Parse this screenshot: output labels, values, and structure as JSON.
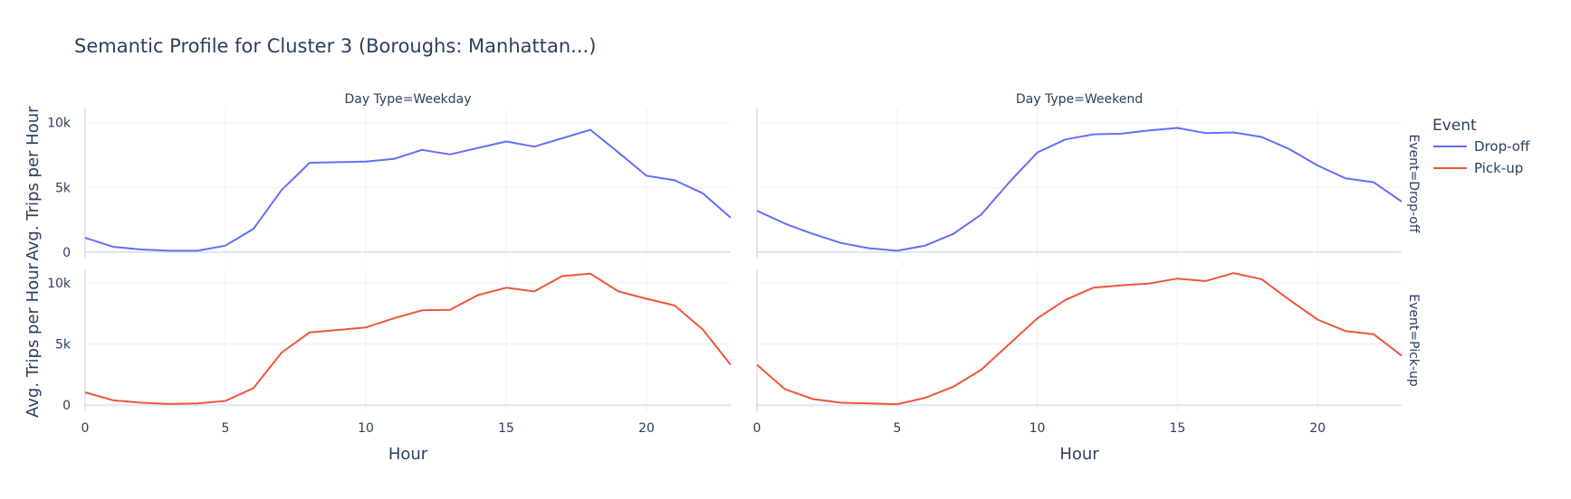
{
  "chart_data": {
    "type": "line",
    "title": "Semantic Profile for Cluster 3 (Boroughs: Manhattan...)",
    "xlabel": "Hour",
    "ylabel": "Avg. Trips per Hour",
    "columns": [
      "Day Type=Weekday",
      "Day Type=Weekend"
    ],
    "rows": [
      "Event=Drop-off",
      "Event=Pick-up"
    ],
    "legend": {
      "title": "Event",
      "position": "right",
      "entries": [
        "Drop-off",
        "Pick-up"
      ]
    },
    "colors": {
      "Drop-off": "#636efa",
      "Pick-up": "#ef553b"
    },
    "x_range": [
      0,
      23
    ],
    "x_ticks": [
      0,
      5,
      10,
      15,
      20
    ],
    "x_tick_labels": [
      "0",
      "5",
      "10",
      "15",
      "20"
    ],
    "y_range": [
      -500,
      11100
    ],
    "y_ticks": [
      0,
      5000,
      10000
    ],
    "y_tick_labels": [
      "0",
      "5k",
      "10k"
    ],
    "grid": true,
    "x": [
      0,
      1,
      2,
      3,
      4,
      5,
      6,
      7,
      8,
      9,
      10,
      11,
      12,
      13,
      14,
      15,
      16,
      17,
      18,
      19,
      20,
      21,
      22,
      23
    ],
    "panels": [
      {
        "row": 0,
        "col": 0,
        "series": "Drop-off",
        "values": [
          1100,
          400,
          200,
          100,
          100,
          500,
          1800,
          4800,
          6900,
          6950,
          7000,
          7200,
          7900,
          7550,
          8050,
          8550,
          8150,
          8800,
          9450,
          7700,
          5900,
          5550,
          4550,
          2650
        ]
      },
      {
        "row": 0,
        "col": 1,
        "series": "Drop-off",
        "values": [
          3200,
          2200,
          1400,
          700,
          300,
          100,
          500,
          1400,
          2900,
          5400,
          7700,
          8700,
          9100,
          9150,
          9400,
          9600,
          9200,
          9250,
          8900,
          7950,
          6700,
          5700,
          5400,
          3900
        ]
      },
      {
        "row": 1,
        "col": 0,
        "series": "Pick-up",
        "values": [
          1050,
          400,
          200,
          100,
          150,
          350,
          1400,
          4300,
          5950,
          6150,
          6350,
          7100,
          7750,
          7800,
          9000,
          9600,
          9300,
          10550,
          10750,
          9300,
          8700,
          8150,
          6200,
          3300
        ]
      },
      {
        "row": 1,
        "col": 1,
        "series": "Pick-up",
        "values": [
          3300,
          1300,
          500,
          200,
          150,
          80,
          600,
          1500,
          2900,
          5000,
          7100,
          8600,
          9600,
          9800,
          9950,
          10350,
          10150,
          10800,
          10300,
          8600,
          7000,
          6050,
          5800,
          4050
        ]
      }
    ]
  }
}
